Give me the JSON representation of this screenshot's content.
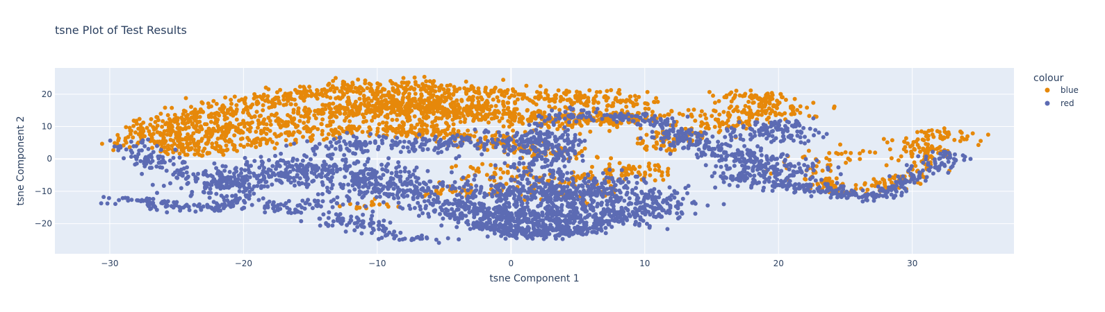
{
  "chart_data": {
    "type": "scatter",
    "title": "tsne Plot of Test Results",
    "xlabel": "tsne Component 1",
    "ylabel": "tsne Component 2",
    "xlim": [
      -34.1,
      37.6
    ],
    "ylim": [
      -29.3,
      28.1
    ],
    "x_ticks": [
      -30,
      -20,
      -10,
      0,
      10,
      20,
      30
    ],
    "y_ticks": [
      -20,
      -10,
      0,
      10,
      20
    ],
    "x_tick_labels": [
      "−30",
      "−20",
      "−10",
      "0",
      "10",
      "20",
      "30"
    ],
    "y_tick_labels": [
      "−20",
      "−10",
      "0",
      "10",
      "20"
    ],
    "grid": true,
    "legend": {
      "title": "colour",
      "placement": "right"
    },
    "background": "#e5ecf6",
    "series": [
      {
        "name": "blue",
        "color": "#e6880a",
        "clusters": [
          {
            "path": [
              [
                -27.5,
                5
              ],
              [
                -25,
                12
              ],
              [
                -20,
                17
              ],
              [
                -15,
                20
              ],
              [
                -10,
                23
              ],
              [
                -5,
                21
              ],
              [
                0,
                20
              ],
              [
                5,
                18
              ],
              [
                10,
                18
              ]
            ],
            "spread": 1.5,
            "count": 650
          },
          {
            "path": [
              [
                -26,
                3
              ],
              [
                -22,
                9
              ],
              [
                -17,
                12
              ],
              [
                -12,
                16
              ],
              [
                -8,
                15
              ],
              [
                -3,
                14
              ],
              [
                2,
                13
              ],
              [
                6,
                12
              ],
              [
                9,
                13
              ]
            ],
            "spread": 1.8,
            "count": 700
          },
          {
            "path": [
              [
                -24,
                2
              ],
              [
                -19,
                6
              ],
              [
                -14,
                8
              ],
              [
                -10,
                10
              ],
              [
                -6,
                8
              ],
              [
                -2,
                6
              ],
              [
                2,
                3
              ],
              [
                5,
                1
              ]
            ],
            "spread": 1.3,
            "count": 380
          },
          {
            "path": [
              [
                -8,
                20
              ],
              [
                -5,
                16
              ],
              [
                -2,
                14
              ],
              [
                -6,
                17
              ],
              [
                -11,
                18
              ],
              [
                -4,
                12
              ]
            ],
            "spread": 2.0,
            "count": 320
          },
          {
            "path": [
              [
                -3,
                -3
              ],
              [
                0,
                -6
              ],
              [
                3,
                -8
              ],
              [
                6,
                -6
              ],
              [
                9,
                -3
              ],
              [
                11,
                -5
              ]
            ],
            "spread": 1.4,
            "count": 150
          },
          {
            "path": [
              [
                4,
                11
              ],
              [
                7,
                12
              ],
              [
                9,
                13
              ],
              [
                12,
                14
              ],
              [
                14,
                15
              ]
            ],
            "spread": 1.2,
            "count": 90
          },
          {
            "path": [
              [
                11,
                3
              ],
              [
                13,
                8
              ],
              [
                16,
                11
              ],
              [
                18,
                14
              ],
              [
                20,
                15
              ],
              [
                22,
                16
              ]
            ],
            "spread": 1.3,
            "count": 140
          },
          {
            "path": [
              [
                16,
                18
              ],
              [
                18,
                20
              ],
              [
                20,
                17
              ],
              [
                19,
                13
              ],
              [
                17,
                15
              ]
            ],
            "spread": 1.2,
            "count": 110
          },
          {
            "path": [
              [
                22,
                -6
              ],
              [
                25,
                -10
              ],
              [
                28,
                -8
              ],
              [
                30,
                -4
              ],
              [
                31,
                1
              ],
              [
                30,
                6
              ],
              [
                32,
                8
              ],
              [
                34,
                5
              ]
            ],
            "spread": 1.0,
            "count": 220
          },
          {
            "path": [
              [
                20,
                -5
              ],
              [
                22,
                -3
              ],
              [
                25,
                1
              ],
              [
                27,
                2
              ]
            ],
            "spread": 1.2,
            "count": 40
          },
          {
            "path": [
              [
                -4,
                -8
              ],
              [
                -6,
                -10
              ],
              [
                -2,
                -10
              ],
              [
                0,
                -11
              ],
              [
                5,
                -11
              ],
              [
                8,
                -10
              ]
            ],
            "spread": 1.0,
            "count": 60
          },
          {
            "path": [
              [
                -12,
                -14
              ],
              [
                -10,
                -15
              ],
              [
                -9,
                -13
              ]
            ],
            "spread": 0.8,
            "count": 15
          }
        ]
      },
      {
        "name": "red",
        "color": "#5c6bb3",
        "clusters": [
          {
            "path": [
              [
                -30,
                -12
              ],
              [
                -28,
                -13
              ],
              [
                -25,
                -15
              ],
              [
                -22,
                -15
              ],
              [
                -20,
                -12
              ]
            ],
            "spread": 0.8,
            "count": 110
          },
          {
            "path": [
              [
                -28,
                5
              ],
              [
                -28,
                2
              ],
              [
                -26,
                -2
              ],
              [
                -24,
                -5
              ],
              [
                -22,
                -7
              ],
              [
                -20,
                -8
              ]
            ],
            "spread": 1.0,
            "count": 130
          },
          {
            "path": [
              [
                -22,
                -10
              ],
              [
                -20,
                -7
              ],
              [
                -18,
                -4
              ],
              [
                -15,
                -2
              ],
              [
                -12,
                -4
              ],
              [
                -10,
                -8
              ],
              [
                -8,
                -10
              ],
              [
                -6,
                -8
              ]
            ],
            "spread": 2.2,
            "count": 600
          },
          {
            "path": [
              [
                -14,
                -20
              ],
              [
                -12,
                -18
              ],
              [
                -10,
                -22
              ],
              [
                -8,
                -24
              ],
              [
                -6,
                -25
              ]
            ],
            "spread": 1.0,
            "count": 100
          },
          {
            "path": [
              [
                -14,
                3
              ],
              [
                -10,
                5
              ],
              [
                -6,
                4
              ],
              [
                -3,
                6
              ],
              [
                0,
                5
              ],
              [
                3,
                2
              ]
            ],
            "spread": 1.6,
            "count": 250
          },
          {
            "path": [
              [
                -4,
                -14
              ],
              [
                -2,
                -16
              ],
              [
                0,
                -18
              ],
              [
                3,
                -20
              ],
              [
                6,
                -18
              ],
              [
                9,
                -16
              ],
              [
                11,
                -13
              ]
            ],
            "spread": 2.2,
            "count": 750
          },
          {
            "path": [
              [
                -1,
                -8
              ],
              [
                1,
                -10
              ],
              [
                3,
                -12
              ],
              [
                6,
                -10
              ],
              [
                8,
                -8
              ]
            ],
            "spread": 2.0,
            "count": 400
          },
          {
            "path": [
              [
                -2,
                -20
              ],
              [
                0,
                -23
              ],
              [
                3,
                -23
              ],
              [
                6,
                -21
              ]
            ],
            "spread": 1.0,
            "count": 200
          },
          {
            "path": [
              [
                2,
                11
              ],
              [
                5,
                14
              ],
              [
                8,
                13
              ],
              [
                11,
                12
              ],
              [
                12,
                9
              ]
            ],
            "spread": 1.0,
            "count": 120
          },
          {
            "path": [
              [
                1,
                5
              ],
              [
                3,
                8
              ],
              [
                3,
                2
              ],
              [
                2,
                -3
              ],
              [
                4,
                -6
              ]
            ],
            "spread": 1.2,
            "count": 200
          },
          {
            "path": [
              [
                12,
                8
              ],
              [
                14,
                5
              ],
              [
                16,
                2
              ],
              [
                18,
                -1
              ],
              [
                20,
                -2
              ],
              [
                22,
                -5
              ]
            ],
            "spread": 1.4,
            "count": 280
          },
          {
            "path": [
              [
                16,
                -4
              ],
              [
                18,
                -6
              ],
              [
                20,
                -8
              ],
              [
                22,
                -9
              ],
              [
                24,
                -9
              ]
            ],
            "spread": 1.2,
            "count": 140
          },
          {
            "path": [
              [
                24,
                -10
              ],
              [
                26,
                -12
              ],
              [
                28,
                -11
              ],
              [
                30,
                -6
              ],
              [
                31,
                -3
              ],
              [
                33,
                2
              ]
            ],
            "spread": 0.8,
            "count": 180
          },
          {
            "path": [
              [
                18,
                6
              ],
              [
                19,
                10
              ],
              [
                20,
                11
              ],
              [
                21,
                6
              ]
            ],
            "spread": 1.2,
            "count": 120
          },
          {
            "path": [
              [
                -19,
                -13
              ],
              [
                -17,
                -16
              ],
              [
                -14,
                -13
              ],
              [
                -12,
                -12
              ]
            ],
            "spread": 1.0,
            "count": 70
          }
        ]
      }
    ]
  }
}
